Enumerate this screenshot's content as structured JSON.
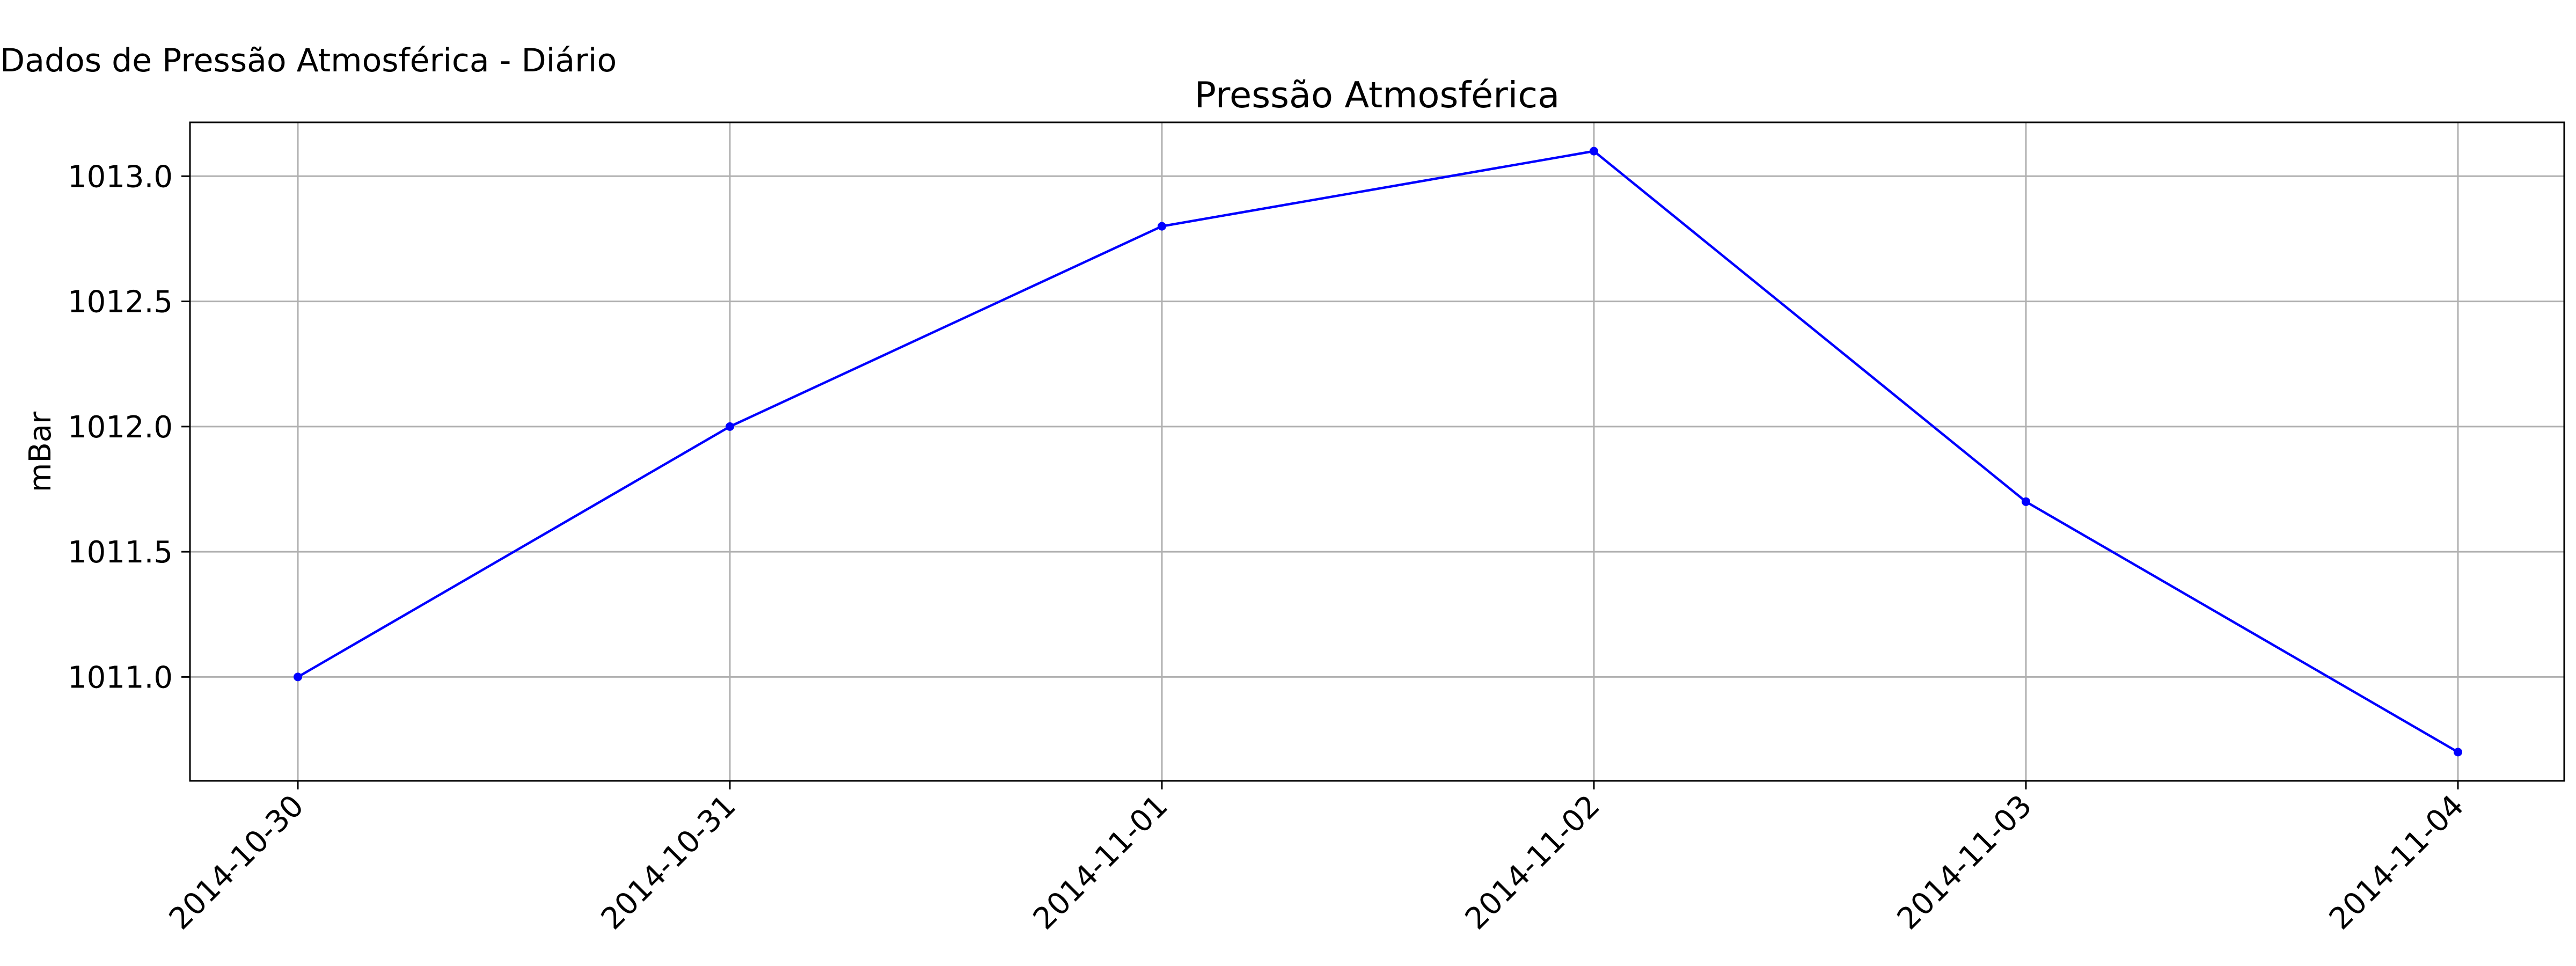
{
  "window": {
    "title": "Dados de Pressão Atmosférica - Diário"
  },
  "colors": {
    "series": "#0000ff",
    "grid": "#b0b0b0",
    "axes": "#000000",
    "background": "#ffffff"
  },
  "chart_data": {
    "type": "line",
    "title": "Pressão Atmosférica",
    "xlabel": "",
    "ylabel": "mBar",
    "x": [
      "2014-10-30",
      "2014-10-31",
      "2014-11-01",
      "2014-11-02",
      "2014-11-03",
      "2014-11-04"
    ],
    "series": [
      {
        "values": [
          1011.0,
          1012.0,
          1012.8,
          1013.1,
          1011.7,
          1010.7
        ],
        "color": "#0000ff",
        "marker": "dot"
      }
    ],
    "yticks": [
      "1011.0",
      "1011.5",
      "1012.0",
      "1012.5",
      "1013.0"
    ],
    "ylim": [
      1010.585,
      1013.215
    ],
    "grid": true,
    "x_tick_rotation": 45,
    "legend": "none"
  }
}
